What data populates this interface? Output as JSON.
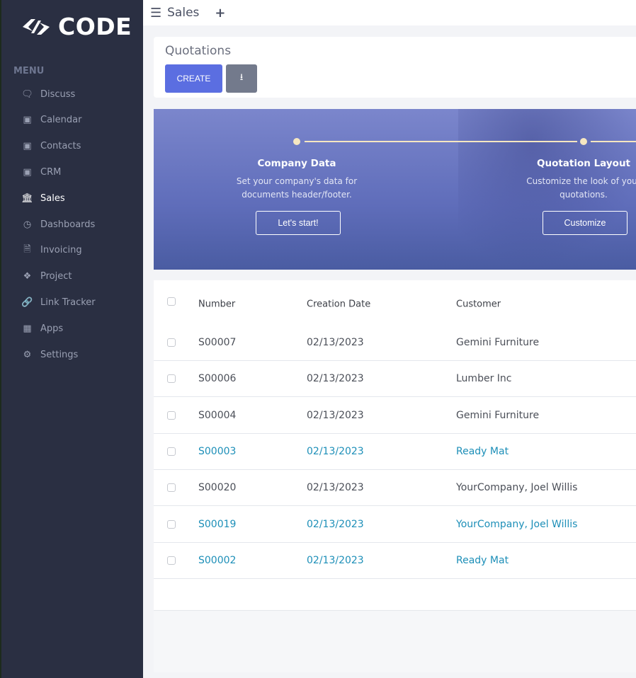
{
  "brand": {
    "name": "CODE"
  },
  "sidebar": {
    "menu_label": "MENU",
    "items": [
      {
        "label": "Discuss",
        "icon": "chat-icon"
      },
      {
        "label": "Calendar",
        "icon": "app-placeholder-icon"
      },
      {
        "label": "Contacts",
        "icon": "app-placeholder-icon"
      },
      {
        "label": "CRM",
        "icon": "app-placeholder-icon"
      },
      {
        "label": "Sales",
        "icon": "sales-chart-icon",
        "active": true
      },
      {
        "label": "Dashboards",
        "icon": "gauge-icon"
      },
      {
        "label": "Invoicing",
        "icon": "invoice-icon"
      },
      {
        "label": "Project",
        "icon": "puzzle-icon"
      },
      {
        "label": "Link Tracker",
        "icon": "link-icon"
      },
      {
        "label": "Apps",
        "icon": "grid-icon"
      },
      {
        "label": "Settings",
        "icon": "gear-icon"
      }
    ]
  },
  "topbar": {
    "title": "Sales",
    "plus": "+"
  },
  "control_panel": {
    "breadcrumb": "Quotations",
    "create_label": "CREATE",
    "download_icon": "download-icon"
  },
  "banner": {
    "accent": "#f6e7c1",
    "steps": [
      {
        "title": "Company Data",
        "desc": "Set your company's data for documents header/footer.",
        "button": "Let's start!"
      },
      {
        "title": "Quotation Layout",
        "desc": "Customize the look of your quotations.",
        "button": "Customize"
      }
    ]
  },
  "table": {
    "headers": [
      "Number",
      "Creation Date",
      "Customer"
    ],
    "link_color": "#1d8fb8",
    "rows": [
      {
        "number": "S00007",
        "date": "02/13/2023",
        "customer": "Gemini Furniture",
        "highlight": false
      },
      {
        "number": "S00006",
        "date": "02/13/2023",
        "customer": "Lumber Inc",
        "highlight": false
      },
      {
        "number": "S00004",
        "date": "02/13/2023",
        "customer": "Gemini Furniture",
        "highlight": false
      },
      {
        "number": "S00003",
        "date": "02/13/2023",
        "customer": "Ready Mat",
        "highlight": true
      },
      {
        "number": "S00020",
        "date": "02/13/2023",
        "customer": "YourCompany, Joel Willis",
        "highlight": false
      },
      {
        "number": "S00019",
        "date": "02/13/2023",
        "customer": "YourCompany, Joel Willis",
        "highlight": true
      },
      {
        "number": "S00002",
        "date": "02/13/2023",
        "customer": "Ready Mat",
        "highlight": true
      }
    ]
  }
}
